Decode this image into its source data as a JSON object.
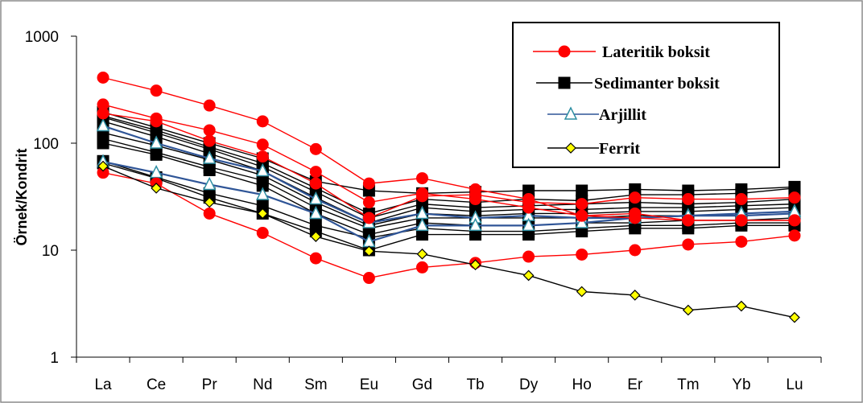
{
  "chart_data": {
    "type": "line",
    "y_scale": "log",
    "ylim": [
      1,
      1000
    ],
    "yticks": [
      "1",
      "10",
      "100",
      "1000"
    ],
    "ylabel": "Örnek/Kondrit",
    "xlabel": "",
    "categories": [
      "La",
      "Ce",
      "Pr",
      "Nd",
      "Sm",
      "Eu",
      "Gd",
      "Tb",
      "Dy",
      "Ho",
      "Er",
      "Tm",
      "Yb",
      "Lu"
    ],
    "legend_position": "top-right",
    "legend": [
      {
        "label": "Lateritik boksit",
        "group": "lateritik"
      },
      {
        "label": "Sedimanter boksit",
        "group": "sedimanter"
      },
      {
        "label": "Arjillit",
        "group": "arjillit"
      },
      {
        "label": "Ferrit",
        "group": "ferrit"
      }
    ],
    "styles": {
      "lateritik": {
        "color": "#ff0000",
        "marker": "circle",
        "fill": "#ff0000",
        "stroke": "#ff0000"
      },
      "sedimanter": {
        "color": "#000000",
        "marker": "square",
        "fill": "#000000",
        "stroke": "#000000"
      },
      "arjillit": {
        "color": "#2f5597",
        "marker": "triangle",
        "fill": "#ffffff",
        "stroke": "#2e8fa3"
      },
      "ferrit": {
        "color": "#000000",
        "marker": "diamond",
        "fill": "#ffff00",
        "stroke": "#000000"
      }
    },
    "series": [
      {
        "group": "lateritik",
        "values": [
          410,
          310,
          225,
          160,
          88,
          42,
          47,
          37,
          30,
          21,
          22,
          19,
          19,
          19
        ]
      },
      {
        "group": "lateritik",
        "values": [
          230,
          170,
          132,
          97,
          54,
          28,
          34,
          30,
          25,
          21,
          20,
          19,
          19,
          19
        ]
      },
      {
        "group": "lateritik",
        "values": [
          190,
          160,
          105,
          75,
          42,
          20,
          32,
          33,
          28,
          27,
          31,
          30,
          30,
          31
        ]
      },
      {
        "group": "lateritik",
        "values": [
          53,
          42,
          22,
          14.5,
          8.4,
          5.5,
          6.9,
          7.6,
          8.7,
          9.1,
          10,
          11.3,
          12,
          13.7
        ]
      },
      {
        "group": "sedimanter",
        "values": [
          195,
          140,
          100,
          72,
          44,
          36,
          34,
          35,
          36,
          36,
          37,
          36,
          37,
          39
        ]
      },
      {
        "group": "sedimanter",
        "values": [
          180,
          132,
          92,
          65,
          38,
          22,
          30,
          28,
          30,
          29,
          33,
          33,
          34,
          38
        ]
      },
      {
        "group": "sedimanter",
        "values": [
          175,
          125,
          88,
          60,
          35,
          20,
          27,
          25,
          26,
          27,
          28,
          27,
          28,
          30
        ]
      },
      {
        "group": "sedimanter",
        "values": [
          160,
          115,
          80,
          55,
          31,
          18,
          25,
          23,
          24,
          24,
          25,
          25,
          26,
          27
        ]
      },
      {
        "group": "sedimanter",
        "values": [
          125,
          95,
          70,
          50,
          28,
          17,
          22,
          21,
          22,
          22,
          23,
          23,
          24,
          25
        ]
      },
      {
        "group": "sedimanter",
        "values": [
          110,
          82,
          60,
          45,
          25,
          16,
          20,
          20,
          20,
          20,
          21,
          21,
          21,
          22
        ]
      },
      {
        "group": "sedimanter",
        "values": [
          100,
          78,
          56,
          40,
          22,
          14,
          18,
          17,
          17,
          18,
          18,
          19,
          19,
          20
        ]
      },
      {
        "group": "sedimanter",
        "values": [
          68,
          48,
          34,
          26,
          17,
          13,
          16,
          15,
          15,
          16,
          17,
          17,
          18,
          18
        ]
      },
      {
        "group": "sedimanter",
        "values": [
          65,
          47,
          31,
          22,
          15,
          10,
          14,
          14,
          14,
          15,
          16,
          16,
          17,
          17
        ]
      },
      {
        "group": "arjillit",
        "values": [
          145,
          100,
          72,
          55,
          30,
          18,
          22,
          20,
          21,
          20,
          20,
          21,
          21,
          22
        ]
      },
      {
        "group": "arjillit",
        "values": [
          67,
          53,
          41,
          33,
          22,
          12,
          17,
          17,
          17,
          18,
          20,
          21,
          22,
          23
        ]
      },
      {
        "group": "ferrit",
        "values": [
          61,
          38,
          28,
          22,
          13.4,
          9.8,
          9.2,
          7.3,
          5.8,
          4.1,
          3.8,
          2.75,
          3,
          2.35
        ]
      }
    ]
  }
}
